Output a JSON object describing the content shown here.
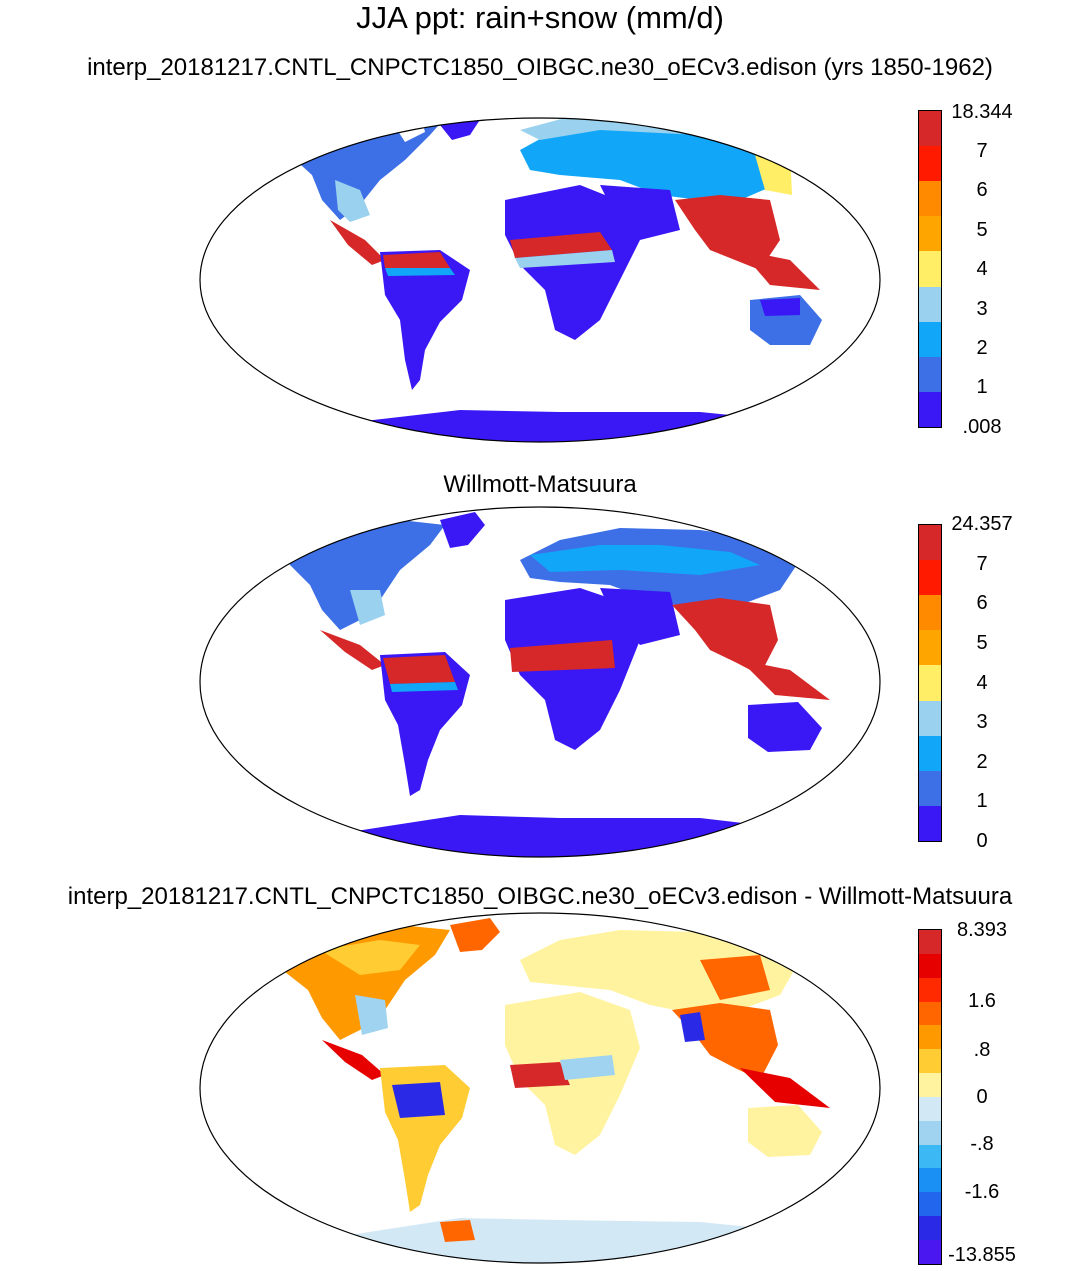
{
  "title": "JJA ppt: rain+snow (mm/d)",
  "panels": [
    {
      "title": "interp_20181217.CNTL_CNPCTC1850_OIBGC.ne30_oECv3.edison (yrs 1850-1962)",
      "colorbar": {
        "labels": [
          "18.344",
          "7",
          "6",
          "5",
          "4",
          "3",
          "2",
          "1",
          ".008"
        ],
        "colors": [
          "#d62828",
          "#ff1a00",
          "#ff8a00",
          "#ffa500",
          "#ffee66",
          "#99d1ee",
          "#12a6f8",
          "#3d6fe6",
          "#3a17f5"
        ]
      }
    },
    {
      "title": "Willmott-Matsuura",
      "colorbar": {
        "labels": [
          "24.357",
          "7",
          "6",
          "5",
          "4",
          "3",
          "2",
          "1",
          "0"
        ],
        "colors": [
          "#d62828",
          "#ff1a00",
          "#ff8a00",
          "#ffa500",
          "#ffee66",
          "#99d1ee",
          "#12a6f8",
          "#3d6fe6",
          "#3a17f5"
        ]
      }
    },
    {
      "title": "interp_20181217.CNTL_CNPCTC1850_OIBGC.ne30_oECv3.edison - Willmott-Matsuura",
      "colorbar": {
        "labels": [
          "8.393",
          "1.6",
          ".8",
          "0",
          "-.8",
          "-1.6",
          "-13.855"
        ],
        "colors": [
          "#d62828",
          "#e60000",
          "#ff2a00",
          "#ff6600",
          "#ff9900",
          "#ffcc33",
          "#fff3a0",
          "#d3e8f5",
          "#9fd3f0",
          "#3cb8f5",
          "#1a90f5",
          "#2266ee",
          "#2a2ae6",
          "#4a17f0"
        ]
      }
    }
  ]
}
